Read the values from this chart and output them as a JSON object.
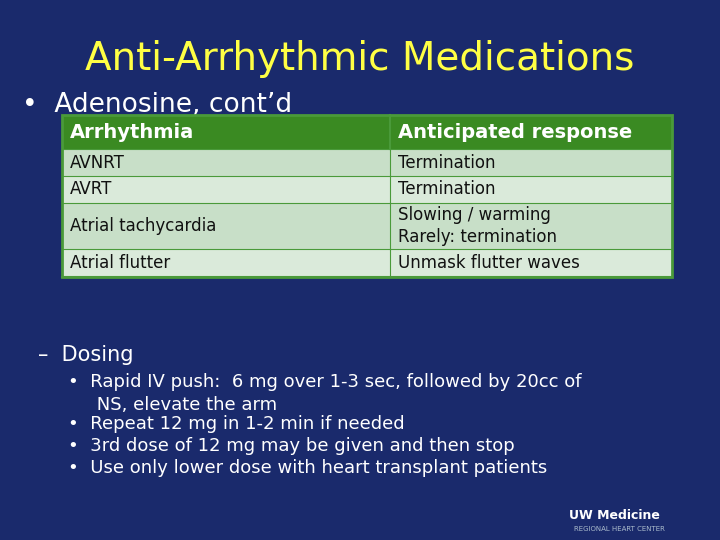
{
  "title": "Anti-Arrhythmic Medications",
  "title_color": "#FFFF44",
  "title_fontsize": 28,
  "bg_color": "#1a2a6c",
  "bullet1_color": "#ffffff",
  "bullet1_fontsize": 19,
  "table_header": [
    "Arrhythmia",
    "Anticipated response"
  ],
  "table_header_bg": "#3a8a22",
  "table_header_color": "#ffffff",
  "table_header_fontsize": 14,
  "table_rows": [
    [
      "AVNRT",
      "Termination"
    ],
    [
      "AVRT",
      "Termination"
    ],
    [
      "Atrial tachycardia",
      "Slowing / warming\nRarely: termination"
    ],
    [
      "Atrial flutter",
      "Unmask flutter waves"
    ]
  ],
  "table_row_bg_odd": "#c8dfc8",
  "table_row_bg_even": "#daeada",
  "table_text_color": "#111111",
  "table_fontsize": 12,
  "table_border_color": "#4a9a3a",
  "dosing_label": "–  Dosing",
  "dosing_color": "#ffffff",
  "dosing_fontsize": 15,
  "bullet1_text": "Rapid IV push:  6 mg over 1-3 sec, followed by 20cc of\n     NS, elevate the arm",
  "bullet2_text": "Repeat 12 mg in 1-2 min if needed",
  "bullet3_text": "3rd dose of 12 mg may be given and then stop",
  "bullet4_text": "Use only lower dose with heart transplant patients",
  "bullet_color": "#ffffff",
  "bullet_fontsize": 13,
  "uwmedicine_text": "UW Medicine",
  "uwmedicine_sub": "REGIONAL HEART CENTER",
  "uwmedicine_color": "#ffffff",
  "uwmedicine_sub_color": "#aabbcc"
}
